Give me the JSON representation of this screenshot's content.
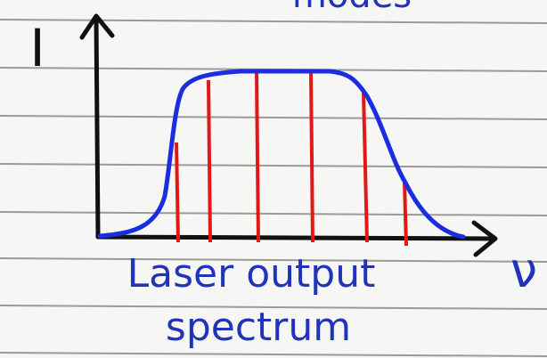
{
  "header": {
    "title": "modes"
  },
  "axes": {
    "y_label": "I",
    "x_label": "ν"
  },
  "caption": {
    "line1": "Laser output",
    "line2": "spectrum"
  }
}
